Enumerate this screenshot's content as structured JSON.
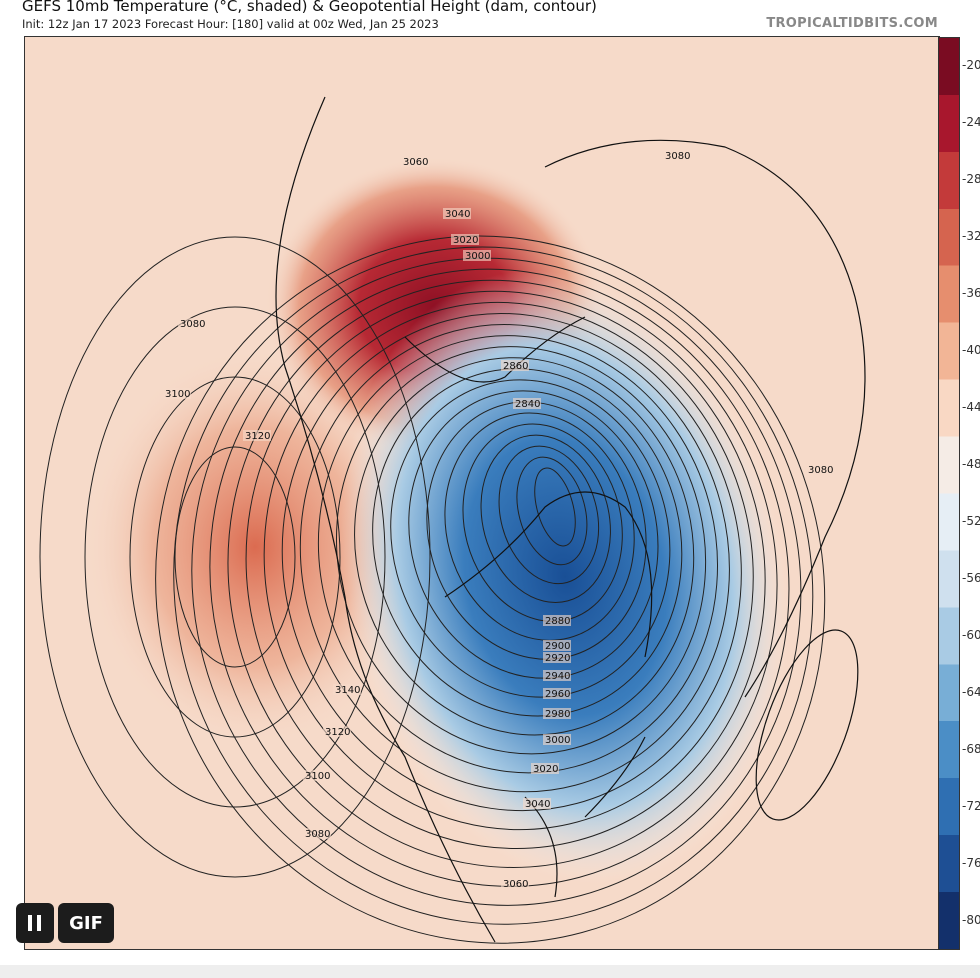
{
  "header": {
    "title": "GEFS 10mb Temperature (°C, shaded) & Geopotential Height (dam, contour)",
    "subtitle": "Init: 12z Jan 17 2023   Forecast Hour: [180]   valid at 00z Wed, Jan 25 2023",
    "brand": "TROPICALTIDBITS.COM"
  },
  "colorbar": {
    "ticks": [
      "-20",
      "-24",
      "-28",
      "-32",
      "-36",
      "-40",
      "-44",
      "-48",
      "-52",
      "-56",
      "-60",
      "-64",
      "-68",
      "-72",
      "-76",
      "-80"
    ],
    "colors": [
      "#7a0c22",
      "#a8172d",
      "#c33a3a",
      "#d5644f",
      "#e68e6e",
      "#f2b596",
      "#f9d8c4",
      "#f5ece6",
      "#e6eef5",
      "#cfe0ee",
      "#a9cbe4",
      "#78aed6",
      "#4b8ec6",
      "#2f6fb2",
      "#1e4f94",
      "#13306b"
    ]
  },
  "map": {
    "contour_labels": [
      "3060",
      "3040",
      "3020",
      "3000",
      "2860",
      "2840",
      "3080",
      "3080",
      "3080",
      "3100",
      "3120",
      "3140",
      "3120",
      "3100",
      "3080",
      "2880",
      "2900",
      "2920",
      "2940",
      "2960",
      "2980",
      "3000",
      "3020",
      "3040",
      "3060"
    ],
    "colors": {
      "background": "#f6dac9",
      "warm": "#e27f60",
      "hot": "#a3182c",
      "cold": "#1f5ea6"
    }
  },
  "controls": {
    "pause_icon": "pause-icon",
    "gif_label": "GIF"
  }
}
